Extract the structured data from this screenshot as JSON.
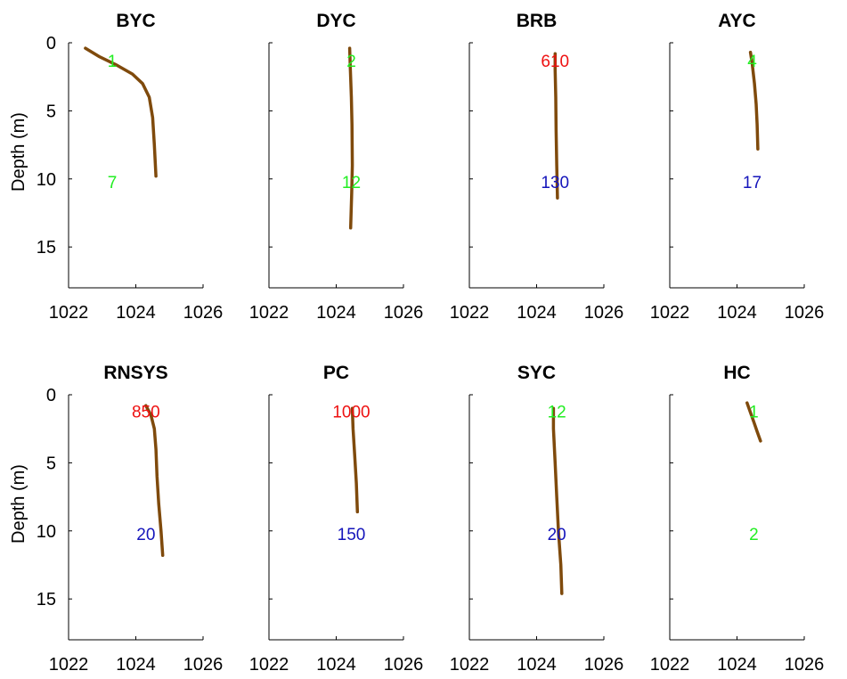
{
  "figure": {
    "colors": {
      "profile": "#7f4a0c",
      "annotation_green": "#22ee22",
      "annotation_red": "#ee1111",
      "annotation_blue": "#1515bb",
      "axis": "#000000"
    }
  },
  "chart_data": [
    {
      "type": "line",
      "title": "BYC",
      "ylabel": "Depth (m)",
      "xlabel": "",
      "xlim": [
        1022,
        1026
      ],
      "ylim": [
        0,
        18
      ],
      "y_reversed": true,
      "xticks": [
        "1022",
        "1024",
        "1026"
      ],
      "yticks": [
        "0",
        "5",
        "10",
        "15"
      ],
      "series": [
        {
          "x": [
            1022.5,
            1022.9,
            1023.4,
            1023.9,
            1024.2,
            1024.4,
            1024.5,
            1024.55,
            1024.6
          ],
          "y": [
            0.4,
            1.0,
            1.6,
            2.3,
            3.0,
            4.0,
            5.5,
            7.5,
            9.8
          ]
        }
      ],
      "annotations": [
        {
          "text": "1",
          "x": 1023.3,
          "y": 1.3,
          "color": "green"
        },
        {
          "text": "7",
          "x": 1023.3,
          "y": 10.2,
          "color": "green"
        }
      ]
    },
    {
      "type": "line",
      "title": "DYC",
      "ylabel": "",
      "xlabel": "",
      "xlim": [
        1022,
        1026
      ],
      "ylim": [
        0,
        18
      ],
      "y_reversed": true,
      "xticks": [
        "1022",
        "1024",
        "1026"
      ],
      "yticks": [],
      "series": [
        {
          "x": [
            1024.4,
            1024.42,
            1024.45,
            1024.47,
            1024.48,
            1024.46,
            1024.43
          ],
          "y": [
            0.4,
            2.0,
            4.0,
            6.0,
            9.0,
            11.0,
            13.6
          ]
        }
      ],
      "annotations": [
        {
          "text": "2",
          "x": 1024.45,
          "y": 1.3,
          "color": "green"
        },
        {
          "text": "12",
          "x": 1024.45,
          "y": 10.2,
          "color": "green"
        }
      ]
    },
    {
      "type": "line",
      "title": "BRB",
      "ylabel": "",
      "xlabel": "",
      "xlim": [
        1022,
        1026
      ],
      "ylim": [
        0,
        18
      ],
      "y_reversed": true,
      "xticks": [
        "1022",
        "1024",
        "1026"
      ],
      "yticks": [],
      "series": [
        {
          "x": [
            1024.55,
            1024.55,
            1024.57,
            1024.58,
            1024.6,
            1024.62
          ],
          "y": [
            0.8,
            2.0,
            4.0,
            6.5,
            9.0,
            11.4
          ]
        }
      ],
      "annotations": [
        {
          "text": "610",
          "x": 1024.55,
          "y": 1.3,
          "color": "red"
        },
        {
          "text": "130",
          "x": 1024.55,
          "y": 10.2,
          "color": "blue"
        }
      ]
    },
    {
      "type": "line",
      "title": "AYC",
      "ylabel": "",
      "xlabel": "",
      "xlim": [
        1022,
        1026
      ],
      "ylim": [
        0,
        18
      ],
      "y_reversed": true,
      "xticks": [
        "1022",
        "1024",
        "1026"
      ],
      "yticks": [],
      "series": [
        {
          "x": [
            1024.4,
            1024.45,
            1024.52,
            1024.57,
            1024.6,
            1024.62
          ],
          "y": [
            0.7,
            1.5,
            3.0,
            4.5,
            6.0,
            7.8
          ]
        }
      ],
      "annotations": [
        {
          "text": "4",
          "x": 1024.45,
          "y": 1.3,
          "color": "green"
        },
        {
          "text": "17",
          "x": 1024.45,
          "y": 10.2,
          "color": "blue"
        }
      ]
    },
    {
      "type": "line",
      "title": "RNSYS",
      "ylabel": "Depth (m)",
      "xlabel": "",
      "xlim": [
        1022,
        1026
      ],
      "ylim": [
        0,
        18
      ],
      "y_reversed": true,
      "xticks": [
        "1022",
        "1024",
        "1026"
      ],
      "yticks": [
        "0",
        "5",
        "10",
        "15"
      ],
      "series": [
        {
          "x": [
            1024.3,
            1024.45,
            1024.55,
            1024.6,
            1024.63,
            1024.68,
            1024.75,
            1024.8
          ],
          "y": [
            0.8,
            1.5,
            2.5,
            4.0,
            6.0,
            8.0,
            10.0,
            11.8
          ]
        }
      ],
      "annotations": [
        {
          "text": "850",
          "x": 1024.3,
          "y": 1.2,
          "color": "red"
        },
        {
          "text": "20",
          "x": 1024.3,
          "y": 10.2,
          "color": "blue"
        }
      ]
    },
    {
      "type": "line",
      "title": "PC",
      "ylabel": "",
      "xlabel": "",
      "xlim": [
        1022,
        1026
      ],
      "ylim": [
        0,
        18
      ],
      "y_reversed": true,
      "xticks": [
        "1022",
        "1024",
        "1026"
      ],
      "yticks": [],
      "series": [
        {
          "x": [
            1024.48,
            1024.5,
            1024.55,
            1024.6,
            1024.63
          ],
          "y": [
            1.0,
            2.5,
            4.5,
            6.5,
            8.6
          ]
        }
      ],
      "annotations": [
        {
          "text": "1000",
          "x": 1024.45,
          "y": 1.2,
          "color": "red"
        },
        {
          "text": "150",
          "x": 1024.45,
          "y": 10.2,
          "color": "blue"
        }
      ]
    },
    {
      "type": "line",
      "title": "SYC",
      "ylabel": "",
      "xlabel": "",
      "xlim": [
        1022,
        1026
      ],
      "ylim": [
        0,
        18
      ],
      "y_reversed": true,
      "xticks": [
        "1022",
        "1024",
        "1026"
      ],
      "yticks": [],
      "series": [
        {
          "x": [
            1024.5,
            1024.5,
            1024.55,
            1024.6,
            1024.65,
            1024.72,
            1024.75
          ],
          "y": [
            1.0,
            2.5,
            5.0,
            7.5,
            10.0,
            12.5,
            14.6
          ]
        }
      ],
      "annotations": [
        {
          "text": "12",
          "x": 1024.6,
          "y": 1.2,
          "color": "green"
        },
        {
          "text": "20",
          "x": 1024.6,
          "y": 10.2,
          "color": "blue"
        }
      ]
    },
    {
      "type": "line",
      "title": "HC",
      "ylabel": "",
      "xlabel": "",
      "xlim": [
        1022,
        1026
      ],
      "ylim": [
        0,
        18
      ],
      "y_reversed": true,
      "xticks": [
        "1022",
        "1024",
        "1026"
      ],
      "yticks": [],
      "series": [
        {
          "x": [
            1024.3,
            1024.4,
            1024.5,
            1024.6,
            1024.7
          ],
          "y": [
            0.6,
            1.3,
            2.0,
            2.7,
            3.4
          ]
        }
      ],
      "annotations": [
        {
          "text": "1",
          "x": 1024.5,
          "y": 1.2,
          "color": "green"
        },
        {
          "text": "2",
          "x": 1024.5,
          "y": 10.2,
          "color": "green"
        }
      ]
    }
  ]
}
